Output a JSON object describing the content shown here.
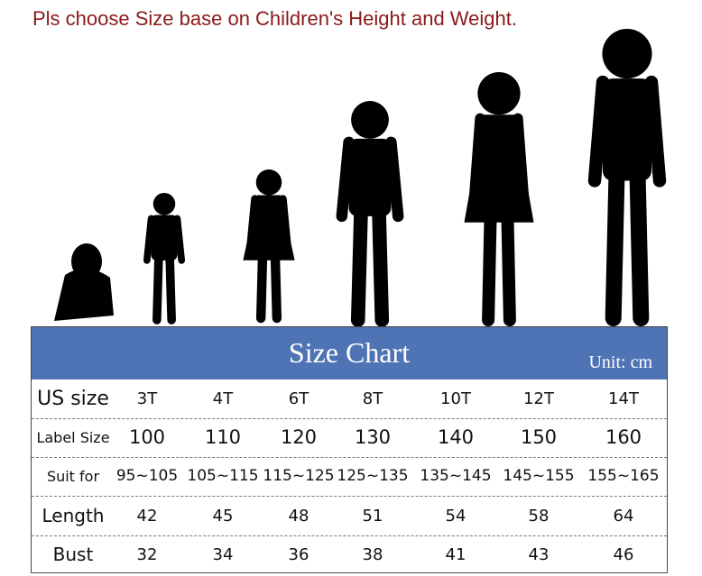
{
  "header": {
    "title": "Pls choose Size base on Children's Height and Weight."
  },
  "table": {
    "title": "Size Chart",
    "unit": "Unit: cm",
    "rows": [
      [
        "US size",
        "3T",
        "4T",
        "6T",
        "8T",
        "10T",
        "12T",
        "14T"
      ],
      [
        "Label Size",
        100,
        110,
        120,
        130,
        140,
        150,
        160
      ],
      [
        "Suit for",
        "95~105",
        "105~115",
        "115~125",
        "125~135",
        "135~145",
        "145~155",
        "155~165"
      ],
      [
        "Length",
        42,
        45,
        48,
        51,
        54,
        58,
        64
      ],
      [
        "Bust",
        32,
        34,
        36,
        38,
        41,
        43,
        46
      ]
    ]
  }
}
